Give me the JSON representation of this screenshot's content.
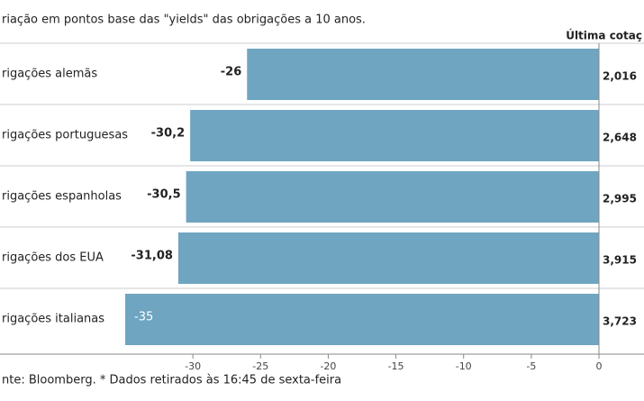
{
  "chart_data": {
    "type": "bar",
    "orientation": "horizontal",
    "title": "riação em pontos base das \"yields\" das obrigações a 10 anos.",
    "column_header": "Última cotaç",
    "categories": [
      "rigações alemãs",
      "rigações portuguesas",
      "rigações espanholas",
      "rigações dos EUA",
      "rigações italianas"
    ],
    "values": [
      -26,
      -30.2,
      -30.5,
      -31.08,
      -35
    ],
    "value_labels": [
      "-26",
      "-30,2",
      "-30,5",
      "-31,08",
      "-35"
    ],
    "quotes": [
      "2,016",
      "2,648",
      "2,995",
      "3,915",
      "3,723"
    ],
    "color": "#6fa5c0",
    "xlim": [
      -35,
      0
    ],
    "xticks": [
      -30,
      -25,
      -20,
      -15,
      -10,
      -5,
      0
    ],
    "source": "nte: Bloomberg.  * Dados retirados às 16:45 de sexta-feira"
  }
}
